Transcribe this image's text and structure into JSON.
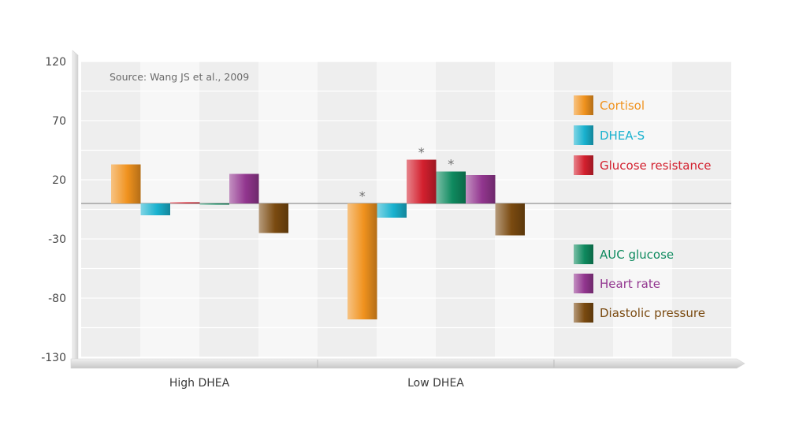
{
  "chart_data": {
    "type": "bar",
    "source": "Source: Wang JS et al., 2009",
    "categories": [
      "High DHEA",
      "Low DHEA"
    ],
    "ylim": [
      -130,
      120
    ],
    "yticks": [
      120,
      70,
      20,
      -30,
      -80,
      -130
    ],
    "grid": true,
    "legend_position": "right",
    "series": [
      {
        "name": "Cortisol",
        "color": "#f0921e",
        "values": [
          33,
          -98
        ],
        "significant": [
          false,
          true
        ]
      },
      {
        "name": "DHEA-S",
        "color": "#1ab2cf",
        "values": [
          -10,
          -12
        ],
        "significant": [
          false,
          false
        ]
      },
      {
        "name": "Glucose resistance",
        "color": "#d3202e",
        "values": [
          1,
          37
        ],
        "significant": [
          false,
          true
        ]
      },
      {
        "name": "AUC glucose",
        "color": "#0f8a5f",
        "values": [
          0,
          27
        ],
        "significant": [
          false,
          true
        ]
      },
      {
        "name": "Heart rate",
        "color": "#92368f",
        "values": [
          25,
          24
        ],
        "significant": [
          false,
          false
        ]
      },
      {
        "name": "Diastolic pressure",
        "color": "#7a4a10",
        "values": [
          -25,
          -27
        ],
        "significant": [
          false,
          false
        ]
      }
    ],
    "significance_marker": "*"
  }
}
